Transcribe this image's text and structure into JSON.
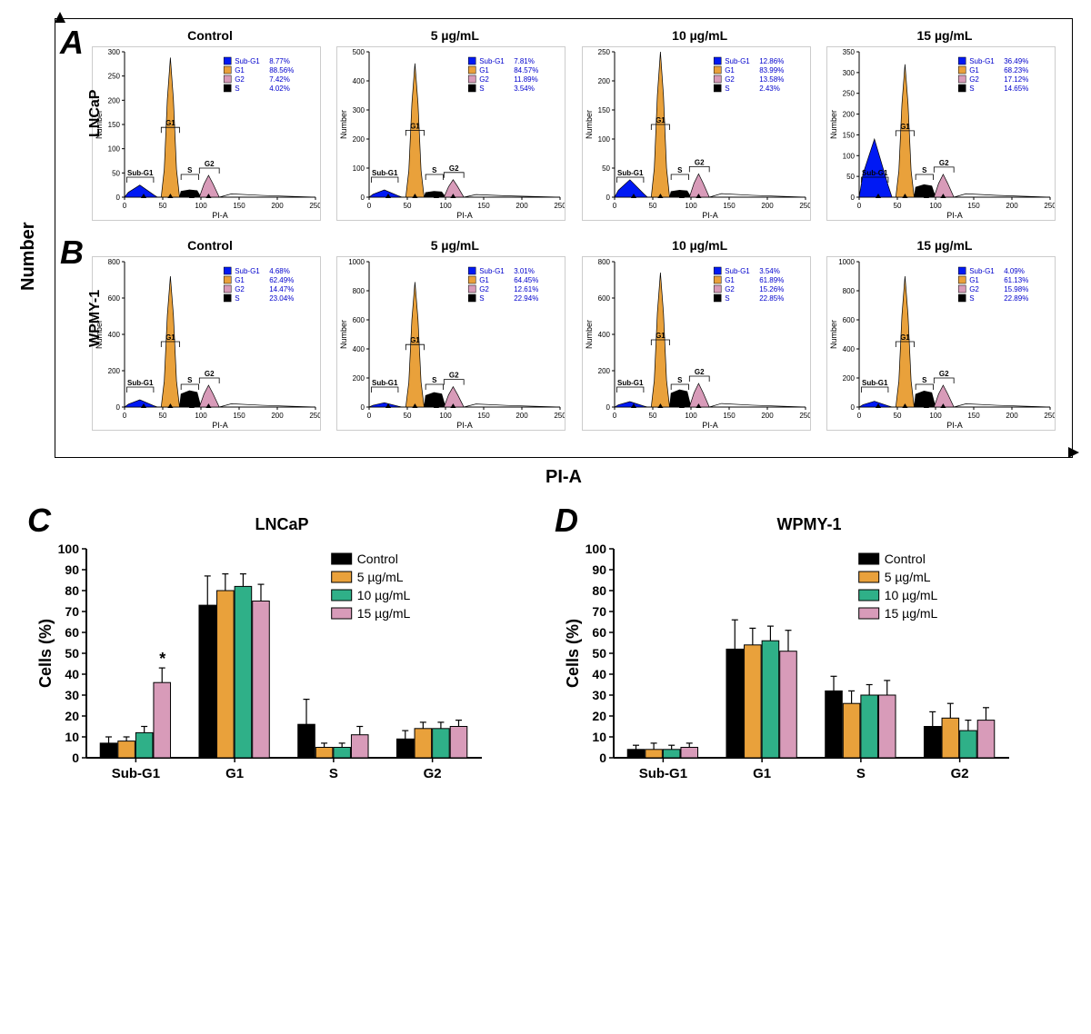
{
  "global": {
    "y_axis_label": "Number",
    "x_axis_label": "PI-A"
  },
  "colors": {
    "subG1": "#0019f4",
    "G1": "#e9a13b",
    "G2": "#d89bb9",
    "S": "#000000",
    "control_bar": "#000000",
    "c5": "#e9a13b",
    "c10": "#2fb088",
    "c15": "#d89bb9",
    "axis": "#000000",
    "legend_text": "#0000cc"
  },
  "flow": {
    "rows": [
      {
        "letter": "A",
        "cell_line": "LNCaP",
        "panels": [
          {
            "title": "Control",
            "ymax": 300,
            "yticks": [
              0,
              50,
              100,
              150,
              200,
              250,
              300
            ],
            "peaks": {
              "subg1": 25,
              "g1": 288,
              "s": 15,
              "g2": 45
            },
            "legend": {
              "Sub-G1": "8.77%",
              "G1": "88.56%",
              "G2": "7.42%",
              "S": "4.02%"
            }
          },
          {
            "title": "5 µg/mL",
            "ymax": 500,
            "yticks": [
              0,
              100,
              200,
              300,
              400,
              500
            ],
            "peaks": {
              "subg1": 25,
              "g1": 460,
              "s": 20,
              "g2": 60
            },
            "legend": {
              "Sub-G1": "7.81%",
              "G1": "84.57%",
              "G2": "11.89%",
              "S": "3.54%"
            }
          },
          {
            "title": "10 µg/mL",
            "ymax": 250,
            "yticks": [
              0,
              50,
              100,
              150,
              200,
              250
            ],
            "peaks": {
              "subg1": 30,
              "g1": 250,
              "s": 12,
              "g2": 40
            },
            "legend": {
              "Sub-G1": "12.86%",
              "G1": "83.99%",
              "G2": "13.58%",
              "S": "2.43%"
            }
          },
          {
            "title": "15 µg/mL",
            "ymax": 350,
            "yticks": [
              0,
              50,
              100,
              150,
              200,
              250,
              300,
              350
            ],
            "peaks": {
              "subg1": 140,
              "g1": 320,
              "s": 30,
              "g2": 55
            },
            "legend": {
              "Sub-G1": "36.49%",
              "G1": "68.23%",
              "G2": "17.12%",
              "S": "14.65%"
            }
          }
        ]
      },
      {
        "letter": "B",
        "cell_line": "WPMY-1",
        "panels": [
          {
            "title": "Control",
            "ymax": 800,
            "yticks": [
              0,
              200,
              400,
              600,
              800
            ],
            "peaks": {
              "subg1": 40,
              "g1": 720,
              "s": 90,
              "g2": 120
            },
            "legend": {
              "Sub-G1": "4.68%",
              "G1": "62.49%",
              "G2": "14.47%",
              "S": "23.04%"
            }
          },
          {
            "title": "5 µg/mL",
            "ymax": 1000,
            "yticks": [
              0,
              200,
              400,
              600,
              800,
              1000
            ],
            "peaks": {
              "subg1": 30,
              "g1": 860,
              "s": 100,
              "g2": 140
            },
            "legend": {
              "Sub-G1": "3.01%",
              "G1": "64.45%",
              "G2": "12.61%",
              "S": "22.94%"
            }
          },
          {
            "title": "10 µg/mL",
            "ymax": 800,
            "yticks": [
              0,
              200,
              400,
              600,
              800
            ],
            "peaks": {
              "subg1": 30,
              "g1": 740,
              "s": 95,
              "g2": 130
            },
            "legend": {
              "Sub-G1": "3.54%",
              "G1": "61.89%",
              "G2": "15.26%",
              "S": "22.85%"
            }
          },
          {
            "title": "15 µg/mL",
            "ymax": 1000,
            "yticks": [
              0,
              200,
              400,
              600,
              800,
              1000
            ],
            "peaks": {
              "subg1": 40,
              "g1": 900,
              "s": 110,
              "g2": 150
            },
            "legend": {
              "Sub-G1": "4.09%",
              "G1": "61.13%",
              "G2": "15.98%",
              "S": "22.89%"
            }
          }
        ]
      }
    ],
    "x_ticks": [
      0,
      50,
      100,
      150,
      200,
      250
    ],
    "x_axis": "PI-A",
    "y_axis": "Number",
    "peak_positions": {
      "subg1_x": 20,
      "g1_x": 60,
      "s_x": 85,
      "g2_x": 110
    }
  },
  "bars": {
    "ymax": 100,
    "yticks": [
      0,
      10,
      20,
      30,
      40,
      50,
      60,
      70,
      80,
      90,
      100
    ],
    "y_label": "Cells (%)",
    "categories": [
      "Sub-G1",
      "G1",
      "S",
      "G2"
    ],
    "series": [
      {
        "label": "Control",
        "color": "#000000"
      },
      {
        "label": "5 µg/mL",
        "color": "#e9a13b"
      },
      {
        "label": "10 µg/mL",
        "color": "#2fb088"
      },
      {
        "label": "15 µg/mL",
        "color": "#d89bb9"
      }
    ],
    "panels": [
      {
        "letter": "C",
        "title": "LNCaP",
        "data": [
          {
            "cat": "Sub-G1",
            "vals": [
              7,
              8,
              12,
              36
            ],
            "err": [
              3,
              2,
              3,
              7
            ],
            "sig": [
              "",
              "",
              "",
              "*"
            ]
          },
          {
            "cat": "G1",
            "vals": [
              73,
              80,
              82,
              75
            ],
            "err": [
              14,
              8,
              6,
              8
            ],
            "sig": [
              "",
              "",
              "",
              ""
            ]
          },
          {
            "cat": "S",
            "vals": [
              16,
              5,
              5,
              11
            ],
            "err": [
              12,
              2,
              2,
              4
            ],
            "sig": [
              "",
              "",
              "",
              ""
            ]
          },
          {
            "cat": "G2",
            "vals": [
              9,
              14,
              14,
              15
            ],
            "err": [
              4,
              3,
              3,
              3
            ],
            "sig": [
              "",
              "",
              "",
              ""
            ]
          }
        ]
      },
      {
        "letter": "D",
        "title": "WPMY-1",
        "data": [
          {
            "cat": "Sub-G1",
            "vals": [
              4,
              4,
              4,
              5
            ],
            "err": [
              2,
              3,
              2,
              2
            ],
            "sig": [
              "",
              "",
              "",
              ""
            ]
          },
          {
            "cat": "G1",
            "vals": [
              52,
              54,
              56,
              51
            ],
            "err": [
              14,
              8,
              7,
              10
            ],
            "sig": [
              "",
              "",
              "",
              ""
            ]
          },
          {
            "cat": "S",
            "vals": [
              32,
              26,
              30,
              30
            ],
            "err": [
              7,
              6,
              5,
              7
            ],
            "sig": [
              "",
              "",
              "",
              ""
            ]
          },
          {
            "cat": "G2",
            "vals": [
              15,
              19,
              13,
              18
            ],
            "err": [
              7,
              7,
              5,
              6
            ],
            "sig": [
              "",
              "",
              "",
              ""
            ]
          }
        ]
      }
    ]
  }
}
